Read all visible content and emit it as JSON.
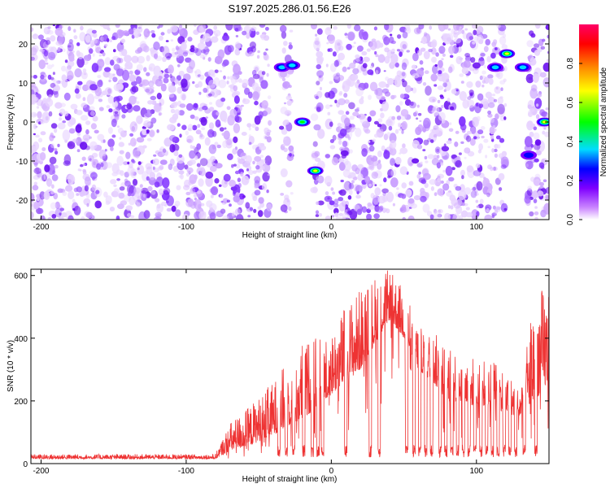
{
  "chart_data": [
    {
      "type": "heatmap",
      "title": "S197.2025.286.01.56.E26",
      "xlabel": "Height of straight line (km)",
      "ylabel": "Frequency (Hz)",
      "xlim": [
        -207,
        150
      ],
      "ylim": [
        -25,
        25
      ],
      "xticks": [
        -200,
        -100,
        0,
        100
      ],
      "xtick_labels": [
        "-200",
        "-100",
        "0",
        "100"
      ],
      "yticks": [
        20,
        10,
        0,
        -10,
        -20
      ],
      "ytick_labels": [
        "20",
        "10",
        "0",
        "-10",
        "-20"
      ],
      "colorbar": {
        "label": "Normalized spectral amplitude",
        "range": [
          0,
          1
        ],
        "ticks": [
          0,
          0.2,
          0.4,
          0.6,
          0.8
        ],
        "tick_labels": [
          "0.0",
          "0.2",
          "0.4",
          "0.6",
          "0.8"
        ],
        "colors": [
          "#ffffff",
          "#cc88ff",
          "#7f00ff",
          "#0000ff",
          "#00ddff",
          "#00ff00",
          "#ffff00",
          "#ff8800",
          "#ff0000",
          "#ff0066"
        ]
      },
      "empty_bands_km": [
        [
          -42,
          -35
        ],
        [
          -27,
          -12
        ],
        [
          -3,
          -7
        ],
        [
          120,
          135
        ]
      ],
      "strong_features": [
        {
          "x": -34,
          "y": 14,
          "amplitude": 0.45
        },
        {
          "x": -27,
          "y": 14.5,
          "amplitude": 0.5
        },
        {
          "x": -20,
          "y": 0,
          "amplitude": 0.65
        },
        {
          "x": -11,
          "y": -12.5,
          "amplitude": 0.75
        },
        {
          "x": 113,
          "y": 14,
          "amplitude": 0.45
        },
        {
          "x": 121,
          "y": 17.5,
          "amplitude": 0.7
        },
        {
          "x": 132,
          "y": 14,
          "amplitude": 0.45
        },
        {
          "x": 136,
          "y": -8.5,
          "amplitude": 0.35
        },
        {
          "x": 147,
          "y": 0,
          "amplitude": 0.7
        }
      ]
    },
    {
      "type": "line",
      "title": "",
      "xlabel": "Height of straight line (km)",
      "ylabel": "SNR (10 * v/v)",
      "xlim": [
        -207,
        150
      ],
      "ylim": [
        0,
        620
      ],
      "xticks": [
        -200,
        -100,
        0,
        100
      ],
      "xtick_labels": [
        "-200",
        "-100",
        "0",
        "100"
      ],
      "yticks": [
        0,
        200,
        400,
        600
      ],
      "ytick_labels": [
        "0",
        "200",
        "400",
        "600"
      ],
      "color": "#ee3333",
      "envelope": {
        "x": [
          -207,
          -80,
          -70,
          -55,
          -40,
          -30,
          -20,
          -10,
          0,
          10,
          20,
          30,
          40,
          50,
          60,
          70,
          80,
          90,
          100,
          110,
          120,
          130,
          140,
          150
        ],
        "baseline": [
          15,
          15,
          40,
          60,
          90,
          120,
          140,
          180,
          220,
          260,
          300,
          380,
          460,
          400,
          300,
          260,
          200,
          200,
          180,
          190,
          160,
          150,
          200,
          260
        ],
        "peak": [
          30,
          30,
          130,
          190,
          260,
          330,
          390,
          400,
          420,
          510,
          560,
          600,
          620,
          560,
          440,
          420,
          390,
          350,
          340,
          330,
          300,
          240,
          560,
          560
        ]
      },
      "dropouts_km": [
        -36,
        -31,
        -26,
        -19,
        -13,
        -9,
        -6,
        10,
        27,
        33,
        52,
        57,
        61,
        65,
        69,
        75,
        79,
        83,
        87,
        91,
        95,
        99,
        103,
        107,
        111,
        115,
        119,
        123,
        127,
        133,
        141
      ]
    }
  ]
}
